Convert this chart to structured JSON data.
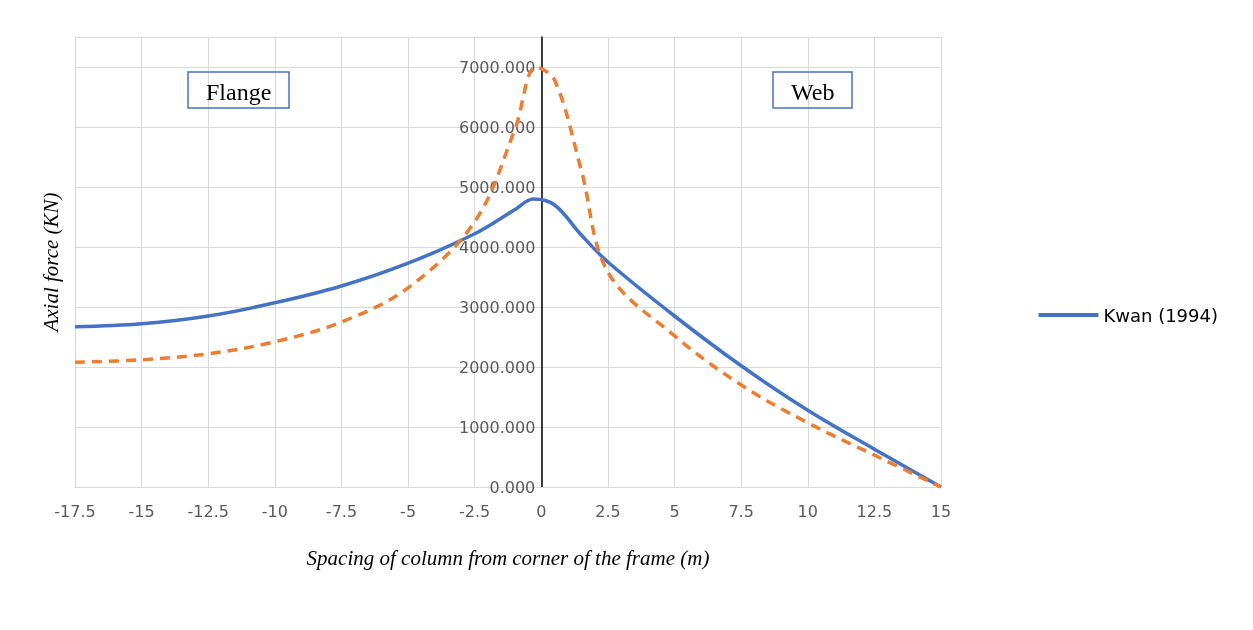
{
  "chart_data": {
    "type": "line",
    "xlabel": "Spacing of column from corner of the frame (m)",
    "ylabel": "Axial force (KN)",
    "annotations": [
      "Flange",
      "Web"
    ],
    "xlim": [
      -17.5,
      15
    ],
    "xticks": [
      -17.5,
      -15,
      -12.5,
      -10,
      -7.5,
      -5,
      -2.5,
      0,
      2.5,
      5,
      7.5,
      10,
      12.5,
      15
    ],
    "ylim": [
      0,
      7500
    ],
    "yticks": [
      {
        "value": 0,
        "label": "0.000"
      },
      {
        "value": 1000,
        "label": "1000.000"
      },
      {
        "value": 2000,
        "label": "2000.000"
      },
      {
        "value": 3000,
        "label": "3000.000"
      },
      {
        "value": 4000,
        "label": "4000.000"
      },
      {
        "value": 5000,
        "label": "5000.000"
      },
      {
        "value": 6000,
        "label": "6000.000"
      },
      {
        "value": 7000,
        "label": "7000.000"
      },
      {
        "value": 7500,
        "label": null
      }
    ],
    "grid": true,
    "legend": "right",
    "marker": "none",
    "series": [
      {
        "name": "Kwan (1994)",
        "color": "#4472c4",
        "line_style": "solid",
        "x": [
          -17.5,
          -15,
          -12.5,
          -10,
          -7.5,
          -5,
          -2.5,
          -1,
          -0.3,
          0.5,
          1.5,
          2.5,
          5,
          7.5,
          10,
          12.5,
          15
        ],
        "values": [
          2670,
          2720,
          2850,
          3070,
          3350,
          3730,
          4220,
          4620,
          4800,
          4700,
          4200,
          3750,
          2850,
          2020,
          1280,
          630,
          0
        ]
      },
      {
        "color": "#ed7d31",
        "line_style": "dashed",
        "x": [
          -17.5,
          -15,
          -12.5,
          -10,
          -7.5,
          -5,
          -2.5,
          -1,
          -0.2,
          0.5,
          1.5,
          2.5,
          5,
          7.5,
          10,
          12.5,
          15
        ],
        "values": [
          2080,
          2120,
          2220,
          2420,
          2750,
          3320,
          4420,
          5950,
          7000,
          6780,
          5280,
          3580,
          2520,
          1700,
          1070,
          530,
          0
        ]
      }
    ]
  }
}
